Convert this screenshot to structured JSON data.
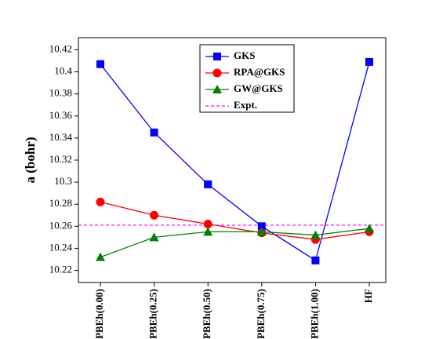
{
  "chart_data": {
    "type": "line",
    "ylabel": "a (bohr)",
    "categories": [
      "PBEh(0.00)",
      "PBEh(0.25)",
      "PBEh(0.50)",
      "PBEh(0.75)",
      "PBEh(1.00)",
      "HF"
    ],
    "series": [
      {
        "name": "GKS",
        "color": "#0000ff",
        "marker": "square",
        "values": [
          10.407,
          10.345,
          10.298,
          10.26,
          10.229,
          10.409
        ]
      },
      {
        "name": "RPA@GKS",
        "color": "#ff0000",
        "marker": "circle",
        "values": [
          10.282,
          10.27,
          10.262,
          10.254,
          10.248,
          10.255
        ]
      },
      {
        "name": "GW@GKS",
        "color": "#008000",
        "marker": "triangle",
        "values": [
          10.232,
          10.25,
          10.255,
          10.255,
          10.252,
          10.258
        ]
      }
    ],
    "reference": {
      "name": "Expt.",
      "value": 10.261,
      "color": "#ff00ff"
    },
    "ylim": [
      10.209,
      10.431
    ],
    "yticks": [
      10.22,
      10.24,
      10.26,
      10.28,
      10.3,
      10.32,
      10.34,
      10.36,
      10.38,
      10.4,
      10.42
    ],
    "legend": "upper center"
  }
}
